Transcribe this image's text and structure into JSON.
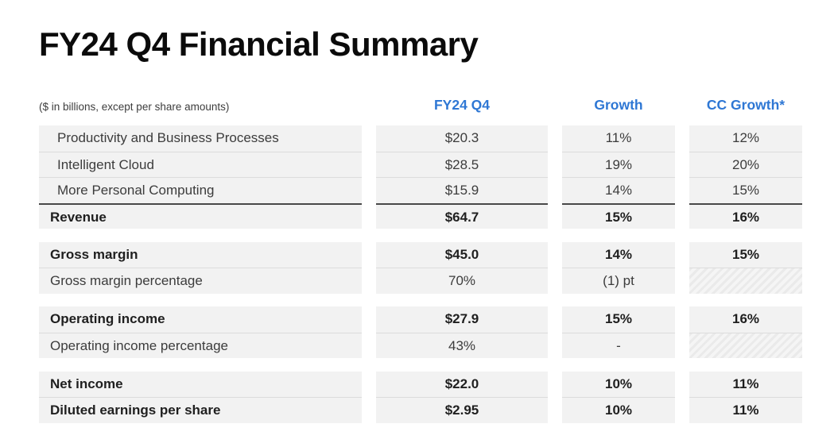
{
  "title": "FY24 Q4 Financial Summary",
  "note": "($ in billions, except per share amounts)",
  "columns": [
    "FY24 Q4",
    "Growth",
    "CC Growth*"
  ],
  "column_keys": [
    "fy24-q4",
    "growth",
    "cc-growth"
  ],
  "colors": {
    "header_blue": "#2E77D4",
    "row_bg": "#F2F2F2",
    "separator": "#DCDCDC",
    "total_border": "#484848",
    "title_text": "#0B0B0B",
    "body_text": "#3C3C3C",
    "bold_text": "#1F1F1F",
    "note_text": "#3D3D3D",
    "hatch_dark": "#EAEAEA",
    "hatch_light": "#F5F5F5"
  },
  "table": {
    "sections": [
      {
        "rows": [
          {
            "label": "Productivity and Business Processes",
            "indent": true,
            "bold": false,
            "total": false,
            "values": [
              "$20.3",
              "11%",
              "12%"
            ],
            "hatched": []
          },
          {
            "label": "Intelligent Cloud",
            "indent": true,
            "bold": false,
            "total": false,
            "values": [
              "$28.5",
              "19%",
              "20%"
            ],
            "hatched": []
          },
          {
            "label": "More Personal Computing",
            "indent": true,
            "bold": false,
            "total": false,
            "values": [
              "$15.9",
              "14%",
              "15%"
            ],
            "hatched": []
          },
          {
            "label": "Revenue",
            "indent": false,
            "bold": true,
            "total": true,
            "values": [
              "$64.7",
              "15%",
              "16%"
            ],
            "hatched": []
          }
        ]
      },
      {
        "rows": [
          {
            "label": "Gross margin",
            "indent": false,
            "bold": true,
            "total": false,
            "values": [
              "$45.0",
              "14%",
              "15%"
            ],
            "hatched": []
          },
          {
            "label": "Gross margin percentage",
            "indent": false,
            "bold": false,
            "total": false,
            "values": [
              "70%",
              "(1) pt",
              ""
            ],
            "hatched": [
              2
            ]
          }
        ]
      },
      {
        "rows": [
          {
            "label": "Operating income",
            "indent": false,
            "bold": true,
            "total": false,
            "values": [
              "$27.9",
              "15%",
              "16%"
            ],
            "hatched": []
          },
          {
            "label": "Operating income percentage",
            "indent": false,
            "bold": false,
            "total": false,
            "values": [
              "43%",
              "-",
              ""
            ],
            "hatched": [
              2
            ]
          }
        ]
      },
      {
        "rows": [
          {
            "label": "Net income",
            "indent": false,
            "bold": true,
            "total": false,
            "values": [
              "$22.0",
              "10%",
              "11%"
            ],
            "hatched": []
          },
          {
            "label": "Diluted earnings per share",
            "indent": false,
            "bold": true,
            "total": false,
            "values": [
              "$2.95",
              "10%",
              "11%"
            ],
            "hatched": []
          }
        ]
      }
    ]
  }
}
